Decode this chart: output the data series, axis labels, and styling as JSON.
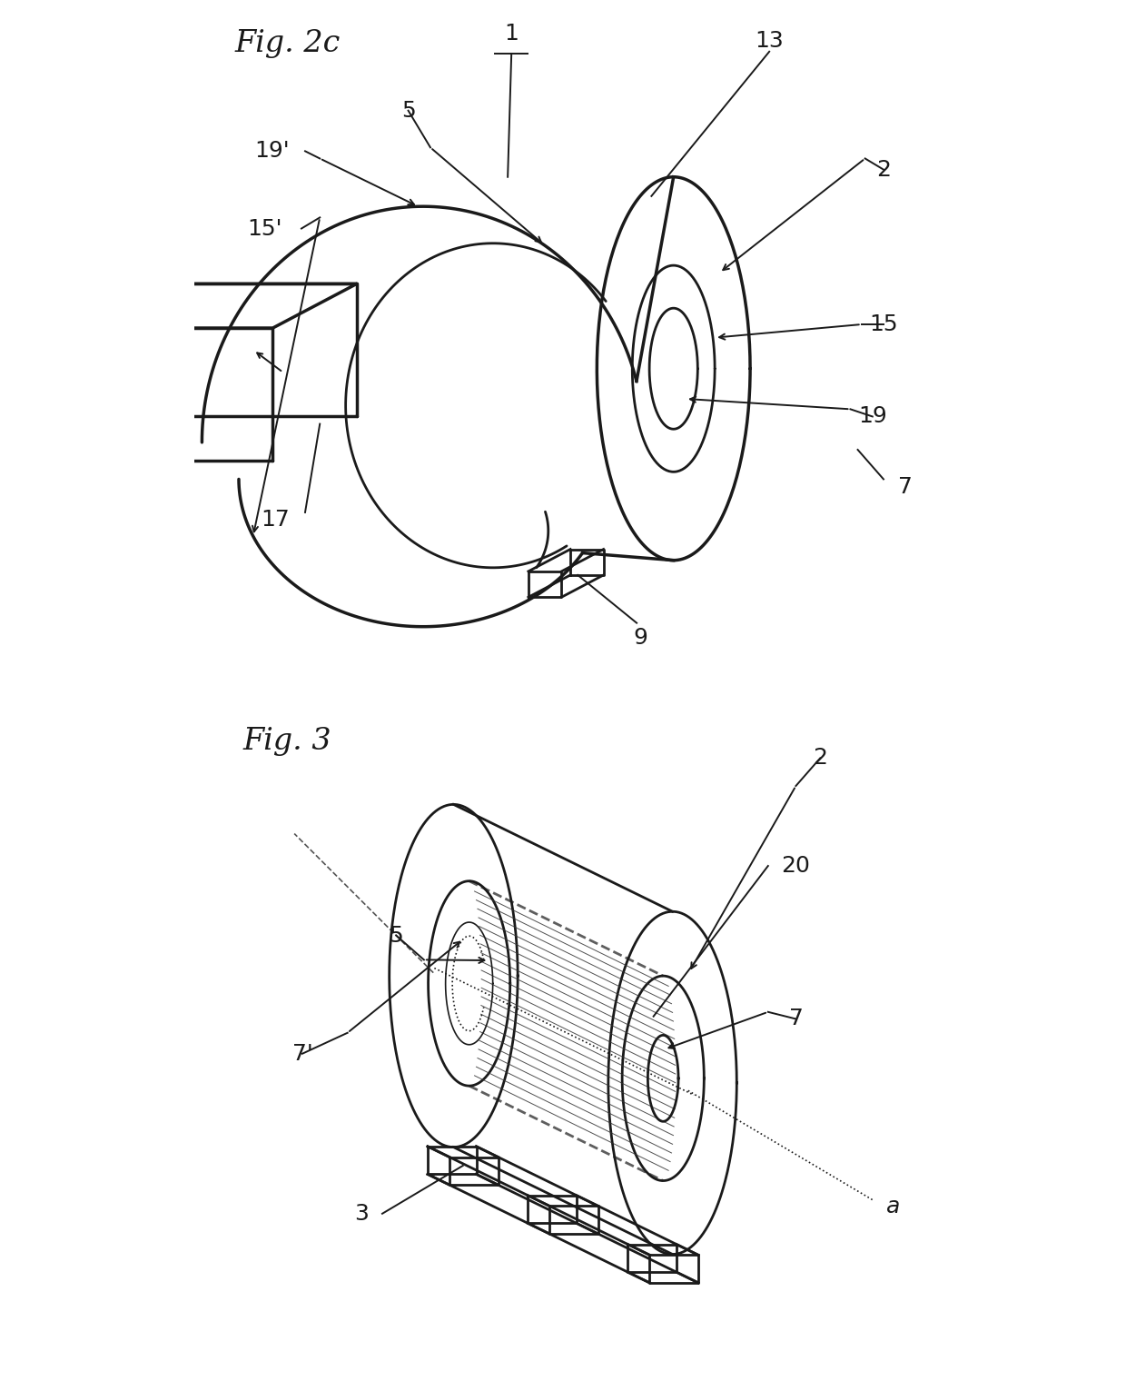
{
  "fig2c_title": "Fig. 2c",
  "fig3_title": "Fig. 3",
  "bg_color": "#ffffff",
  "line_color": "#1a1a1a",
  "lw_main": 2.0,
  "lw_thin": 1.2,
  "lw_thick": 2.5,
  "lw_label": 1.4
}
